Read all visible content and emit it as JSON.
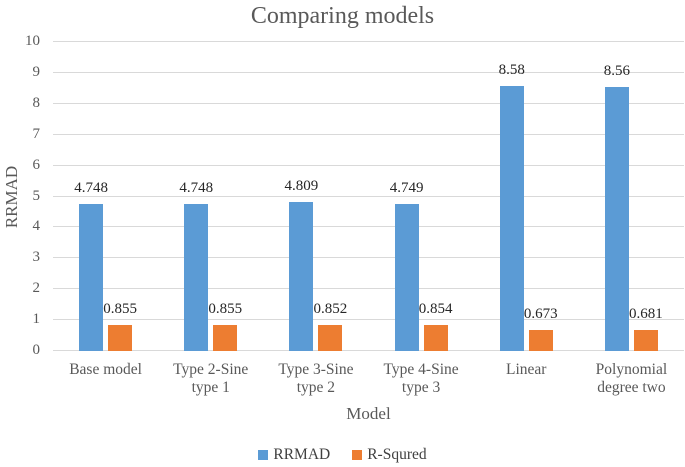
{
  "chart_data": {
    "type": "bar",
    "title": "Comparing models",
    "xlabel": "Model",
    "ylabel": "RRMAD",
    "ylim": [
      0,
      10
    ],
    "ytick_step": 1,
    "grid": true,
    "legend_position": "bottom",
    "categories": [
      "Base model",
      "Type 2-Sine type 1",
      "Type 3-Sine type 2",
      "Type 4-Sine type 3",
      "Linear",
      "Polynomial degree two"
    ],
    "series": [
      {
        "name": "RRMAD",
        "color": "#5B9BD5",
        "values": [
          4.748,
          4.748,
          4.809,
          4.749,
          8.58,
          8.56
        ],
        "labels": [
          "4.748",
          "4.748",
          "4.809",
          "4.749",
          "8.58",
          "8.56"
        ]
      },
      {
        "name": "R-Squred",
        "color": "#ED7D31",
        "values": [
          0.855,
          0.855,
          0.852,
          0.854,
          0.673,
          0.681
        ],
        "labels": [
          "0.855",
          "0.855",
          "0.852",
          "0.854",
          "0.673",
          "0.681"
        ]
      }
    ],
    "colors": {
      "gridline": "#d9d9d9",
      "axis_text": "#595959",
      "data_label": "#262626",
      "background": "#ffffff"
    }
  }
}
